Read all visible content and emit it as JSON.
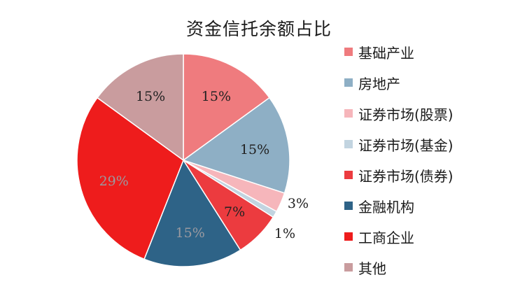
{
  "chart_data": {
    "type": "pie",
    "title": "资金信托余额占比",
    "legend_position": "right",
    "slices": [
      {
        "name": "基础产业",
        "value": 15,
        "label": "15%",
        "color": "#ef7b7e"
      },
      {
        "name": "房地产",
        "value": 15,
        "label": "15%",
        "color": "#8eafc5"
      },
      {
        "name": "证券市场(股票)",
        "value": 3,
        "label": "3%",
        "color": "#f6b6bb"
      },
      {
        "name": "证券市场(基金)",
        "value": 1,
        "label": "1%",
        "color": "#c2d4e0"
      },
      {
        "name": "证券市场(债券)",
        "value": 7,
        "label": "7%",
        "color": "#ec3b3f"
      },
      {
        "name": "金融机构",
        "value": 15,
        "label": "15%",
        "color": "#2e6387"
      },
      {
        "name": "工商企业",
        "value": 29,
        "label": "29%",
        "color": "#ee1c1c"
      },
      {
        "name": "其他",
        "value": 15,
        "label": "15%",
        "color": "#c99c9e"
      }
    ]
  }
}
